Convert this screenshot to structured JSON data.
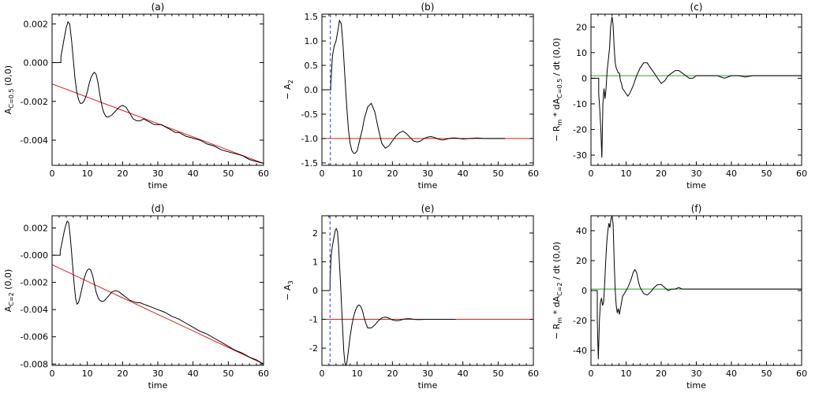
{
  "chart_data": [
    {
      "id": "a",
      "type": "line",
      "title": "(a)",
      "xlabel": "time",
      "ylabel": "A",
      "ylabel_sub": "C=0.5",
      "ylabel_tail": "(0,0)",
      "xlim": [
        0,
        60
      ],
      "ylim": [
        -0.0053,
        0.0025
      ],
      "xticks": [
        0,
        10,
        20,
        30,
        40,
        50,
        60
      ],
      "xtick_labels": [
        "0",
        "10",
        "20",
        "30",
        "40",
        "50",
        "60"
      ],
      "yticks": [
        0.002,
        0.0,
        -0.002,
        -0.004
      ],
      "ytick_labels": [
        "0.002",
        "0.000",
        "-0.002",
        "-0.004"
      ],
      "series": [
        {
          "color": "#000000",
          "x": [
            0,
            2.5,
            2.5,
            3,
            3.5,
            4,
            4.5,
            5,
            5.5,
            6,
            6.5,
            7,
            7.5,
            8,
            8.5,
            9,
            9.5,
            10,
            10.5,
            11,
            11.5,
            12,
            12.5,
            13,
            13.5,
            14,
            14.5,
            15,
            15.5,
            16,
            17,
            18,
            19,
            20,
            21,
            22,
            23,
            24,
            25,
            26,
            27,
            28,
            29,
            30,
            31,
            32,
            33,
            34,
            35,
            36,
            37,
            38,
            40,
            42,
            44,
            46,
            48,
            50,
            52,
            54,
            56,
            58,
            60
          ],
          "y": [
            0,
            0,
            0.0003,
            0.0008,
            0.0013,
            0.0018,
            0.0021,
            0.002,
            0.0012,
            0.0002,
            -0.0008,
            -0.0015,
            -0.0019,
            -0.0021,
            -0.0021,
            -0.002,
            -0.0018,
            -0.0015,
            -0.0011,
            -0.0008,
            -0.0006,
            -0.0005,
            -0.0006,
            -0.001,
            -0.0016,
            -0.0021,
            -0.0025,
            -0.0027,
            -0.0028,
            -0.0028,
            -0.0027,
            -0.0025,
            -0.0023,
            -0.0022,
            -0.0023,
            -0.0026,
            -0.0029,
            -0.003,
            -0.003,
            -0.0029,
            -0.003,
            -0.0031,
            -0.0032,
            -0.0032,
            -0.0032,
            -0.0033,
            -0.0034,
            -0.0035,
            -0.0036,
            -0.0036,
            -0.0037,
            -0.0038,
            -0.0039,
            -0.004,
            -0.0042,
            -0.0043,
            -0.0045,
            -0.0046,
            -0.0047,
            -0.0048,
            -0.005,
            -0.0051,
            -0.0052
          ]
        },
        {
          "color": "#e41a1c",
          "x": [
            0,
            60
          ],
          "y": [
            -0.0011,
            -0.0052
          ]
        }
      ],
      "vlines": []
    },
    {
      "id": "b",
      "type": "line",
      "title": "(b)",
      "xlabel": "time",
      "ylabel": "− A",
      "ylabel_sub": "2",
      "ylabel_tail": "",
      "xlim": [
        0,
        60
      ],
      "ylim": [
        -1.55,
        1.55
      ],
      "xticks": [
        0,
        10,
        20,
        30,
        40,
        50,
        60
      ],
      "xtick_labels": [
        "0",
        "10",
        "20",
        "30",
        "40",
        "50",
        "60"
      ],
      "yticks": [
        1.5,
        1.0,
        0.5,
        0.0,
        -0.5,
        -1.0,
        -1.5
      ],
      "ytick_labels": [
        "1.5",
        "1.0",
        "0.5",
        "0.0",
        "-0.5",
        "-1.0",
        "-1.5"
      ],
      "series": [
        {
          "color": "#000000",
          "x": [
            0,
            2.5,
            2.5,
            3,
            3.5,
            4,
            4.5,
            5,
            5.5,
            6,
            6.5,
            7,
            7.5,
            8,
            8.5,
            9,
            9.5,
            10,
            10.5,
            11,
            11.5,
            12,
            13,
            14,
            15,
            16,
            17,
            18,
            19,
            20,
            21,
            22,
            23,
            24,
            25,
            26,
            27,
            28,
            29,
            30,
            31,
            32,
            33,
            34,
            35,
            36,
            37,
            38,
            39,
            40,
            42,
            44,
            46,
            48,
            50,
            52
          ],
          "y": [
            0,
            0,
            0.1,
            0.7,
            0.9,
            1.0,
            1.2,
            1.42,
            1.35,
            0.9,
            0.3,
            -0.3,
            -0.8,
            -1.1,
            -1.25,
            -1.3,
            -1.3,
            -1.25,
            -1.1,
            -0.95,
            -0.8,
            -0.6,
            -0.35,
            -0.28,
            -0.45,
            -0.8,
            -1.1,
            -1.2,
            -1.15,
            -1.05,
            -0.95,
            -0.88,
            -0.85,
            -0.9,
            -0.98,
            -1.05,
            -1.07,
            -1.05,
            -1.0,
            -0.97,
            -0.96,
            -0.98,
            -1.01,
            -1.03,
            -1.02,
            -1.0,
            -0.99,
            -0.99,
            -1.0,
            -1.01,
            -1.0,
            -0.99,
            -1.0,
            -1.0,
            -1.0,
            -1.0
          ]
        },
        {
          "color": "#e41a1c",
          "x": [
            0,
            60
          ],
          "y": [
            -1.0,
            -1.0
          ]
        }
      ],
      "vlines": [
        {
          "x": 2.4,
          "color": "#1f3fd6",
          "style": "dashed"
        }
      ]
    },
    {
      "id": "c",
      "type": "line",
      "title": "(c)",
      "xlabel": "time",
      "ylabel": "− R",
      "ylabel_sub": "m",
      "ylabel_tail": "* dA",
      "ylabel_sub2": "C=0.5",
      "ylabel_tail2": "/ dt (0,0)",
      "xlim": [
        0,
        60
      ],
      "ylim": [
        -34,
        25
      ],
      "xticks": [
        0,
        10,
        20,
        30,
        40,
        50,
        60
      ],
      "xtick_labels": [
        "0",
        "10",
        "20",
        "30",
        "40",
        "50",
        "60"
      ],
      "yticks": [
        20,
        10,
        0,
        -10,
        -20,
        -30
      ],
      "ytick_labels": [
        "20",
        "10",
        "0",
        "-10",
        "-20",
        "-30"
      ],
      "series": [
        {
          "color": "#000000",
          "x": [
            0,
            2.2,
            2.2,
            2.5,
            2.8,
            3.1,
            3.4,
            3.7,
            4,
            4.3,
            4.6,
            5,
            5.3,
            5.6,
            6,
            6.3,
            6.6,
            6.9,
            7.2,
            7.5,
            7.8,
            8.1,
            8.4,
            8.7,
            9,
            9.5,
            10,
            10.5,
            11,
            12,
            13,
            14,
            15,
            16,
            17,
            18,
            19,
            20,
            21,
            22,
            23,
            24,
            25,
            26,
            27,
            28,
            29,
            30,
            31,
            32,
            34,
            36,
            38,
            40,
            42,
            44,
            46,
            48,
            50,
            52,
            54,
            56,
            58,
            60
          ],
          "y": [
            0,
            0,
            -6,
            -12,
            -20,
            -31,
            -10,
            -4,
            -8,
            -4,
            3,
            8,
            12,
            20,
            24,
            21,
            12,
            6,
            4,
            3,
            2,
            2,
            -1,
            -2,
            -4,
            -5,
            -6,
            -7,
            -6,
            -3,
            1,
            4,
            6,
            6,
            4,
            2,
            0,
            -2,
            -1,
            1,
            2,
            3,
            3,
            2,
            1,
            0,
            0,
            1,
            1,
            1,
            1,
            1,
            0,
            1,
            1,
            0.5,
            1,
            1,
            1,
            1,
            1,
            1,
            1,
            1
          ]
        },
        {
          "color": "#2ca02c",
          "x": [
            0,
            60
          ],
          "y": [
            1.0,
            1.0
          ]
        }
      ],
      "vlines": []
    },
    {
      "id": "d",
      "type": "line",
      "title": "(d)",
      "xlabel": "time",
      "ylabel": "A",
      "ylabel_sub": "C=2",
      "ylabel_tail": "(0,0)",
      "xlim": [
        0,
        60
      ],
      "ylim": [
        -0.0081,
        0.0029
      ],
      "xticks": [
        0,
        10,
        20,
        30,
        40,
        50,
        60
      ],
      "xtick_labels": [
        "0",
        "10",
        "20",
        "30",
        "40",
        "50",
        "60"
      ],
      "yticks": [
        0.002,
        0.0,
        -0.002,
        -0.004,
        -0.006,
        -0.008
      ],
      "ytick_labels": [
        "0.002",
        "-0.000",
        "-0.002",
        "-0.004",
        "-0.006",
        "-0.008"
      ],
      "series": [
        {
          "color": "#000000",
          "x": [
            0,
            2.3,
            2.3,
            2.7,
            3.1,
            3.5,
            3.9,
            4.3,
            4.7,
            5.1,
            5.5,
            5.9,
            6.3,
            6.7,
            7.1,
            7.5,
            8,
            8.5,
            9,
            9.5,
            10,
            10.5,
            11,
            11.5,
            12,
            12.5,
            13,
            13.5,
            14,
            14.5,
            15,
            16,
            17,
            18,
            19,
            20,
            21,
            22,
            23,
            24,
            25,
            26,
            27,
            28,
            30,
            32,
            34,
            36,
            38,
            40,
            42,
            44,
            46,
            48,
            50,
            52,
            54,
            56,
            58,
            60
          ],
          "y": [
            0,
            0,
            0.0003,
            0.0008,
            0.0013,
            0.0018,
            0.0022,
            0.0025,
            0.0024,
            0.0015,
            0.0003,
            -0.001,
            -0.0022,
            -0.0032,
            -0.0036,
            -0.0035,
            -0.003,
            -0.0024,
            -0.0018,
            -0.0014,
            -0.0011,
            -0.001,
            -0.0011,
            -0.0015,
            -0.0021,
            -0.0027,
            -0.0031,
            -0.0033,
            -0.0034,
            -0.0034,
            -0.0033,
            -0.003,
            -0.0027,
            -0.0026,
            -0.0027,
            -0.0029,
            -0.0031,
            -0.0033,
            -0.0034,
            -0.0035,
            -0.0035,
            -0.0036,
            -0.0037,
            -0.0038,
            -0.004,
            -0.0042,
            -0.0045,
            -0.0047,
            -0.005,
            -0.0053,
            -0.0056,
            -0.0058,
            -0.0061,
            -0.0064,
            -0.0067,
            -0.007,
            -0.0072,
            -0.0075,
            -0.0077,
            -0.008
          ]
        },
        {
          "color": "#e41a1c",
          "x": [
            0,
            60
          ],
          "y": [
            -0.0007,
            -0.008
          ]
        }
      ],
      "vlines": []
    },
    {
      "id": "e",
      "type": "line",
      "title": "(e)",
      "xlabel": "time",
      "ylabel": "− A",
      "ylabel_sub": "3",
      "ylabel_tail": "",
      "xlim": [
        0,
        60
      ],
      "ylim": [
        -2.6,
        2.6
      ],
      "xticks": [
        0,
        10,
        20,
        30,
        40,
        50,
        60
      ],
      "xtick_labels": [
        "0",
        "10",
        "20",
        "30",
        "40",
        "50",
        "60"
      ],
      "yticks": [
        2,
        1,
        0,
        -1,
        -2
      ],
      "ytick_labels": [
        "2",
        "1",
        "0",
        "-1",
        "-2"
      ],
      "series": [
        {
          "color": "#000000",
          "x": [
            0,
            2.3,
            2.3,
            2.6,
            2.9,
            3.2,
            3.5,
            3.8,
            4.1,
            4.4,
            4.7,
            5,
            5.3,
            5.6,
            5.9,
            6.2,
            6.5,
            6.8,
            7.1,
            7.4,
            7.7,
            8,
            8.5,
            9,
            9.5,
            10,
            10.5,
            11,
            11.5,
            12,
            12.5,
            13,
            14,
            15,
            16,
            17,
            18,
            19,
            20,
            21,
            22,
            23,
            24,
            25,
            26,
            27,
            28,
            29,
            30,
            32,
            34,
            36,
            38
          ],
          "y": [
            0,
            0,
            0.3,
            1.2,
            1.5,
            1.7,
            1.9,
            2.1,
            2.15,
            2.05,
            1.6,
            0.9,
            0.2,
            -0.6,
            -1.4,
            -2.1,
            -2.5,
            -2.6,
            -2.5,
            -2.2,
            -1.9,
            -1.6,
            -1.2,
            -0.9,
            -0.7,
            -0.55,
            -0.5,
            -0.55,
            -0.7,
            -0.95,
            -1.15,
            -1.3,
            -1.3,
            -1.2,
            -1.05,
            -0.95,
            -0.92,
            -0.96,
            -1.02,
            -1.05,
            -1.04,
            -1.0,
            -0.98,
            -0.98,
            -1.0,
            -1.01,
            -1.01,
            -1.0,
            -1.0,
            -1.0,
            -1.0,
            -1.0,
            -1.0
          ]
        },
        {
          "color": "#e41a1c",
          "x": [
            0,
            60
          ],
          "y": [
            -1.0,
            -1.0
          ]
        }
      ],
      "vlines": [
        {
          "x": 2.3,
          "color": "#1f3fd6",
          "style": "dashed"
        }
      ]
    },
    {
      "id": "f",
      "type": "line",
      "title": "(f)",
      "xlabel": "time",
      "ylabel": "− R",
      "ylabel_sub": "m",
      "ylabel_tail": "* dA",
      "ylabel_sub2": "C=2",
      "ylabel_tail2": "/ dt (0,0)",
      "xlim": [
        0,
        60
      ],
      "ylim": [
        -50,
        50
      ],
      "xticks": [
        0,
        10,
        20,
        30,
        40,
        50,
        60
      ],
      "xtick_labels": [
        "0",
        "10",
        "20",
        "30",
        "40",
        "50",
        "60"
      ],
      "yticks": [
        40,
        20,
        0,
        -20,
        -40
      ],
      "ytick_labels": [
        "40",
        "20",
        "0",
        "-20",
        "-40"
      ],
      "series": [
        {
          "color": "#000000",
          "x": [
            0,
            1.8,
            1.8,
            2.1,
            2.4,
            2.7,
            3,
            3.3,
            3.6,
            3.9,
            4.2,
            4.5,
            4.8,
            5.1,
            5.4,
            5.7,
            6,
            6.3,
            6.6,
            6.9,
            7.2,
            7.5,
            7.8,
            8.1,
            8.4,
            8.7,
            9,
            9.5,
            10,
            10.5,
            11,
            11.5,
            12,
            12.5,
            13,
            13.5,
            14,
            15,
            16,
            17,
            18,
            19,
            20,
            21,
            22,
            23,
            24,
            25,
            26,
            27,
            28,
            30,
            32,
            34,
            36,
            38,
            40,
            44,
            48,
            52,
            56,
            60
          ],
          "y": [
            0,
            0,
            -20,
            -46,
            -20,
            -8,
            -5,
            -10,
            -8,
            5,
            20,
            32,
            40,
            45,
            42,
            48,
            50,
            45,
            20,
            0,
            -10,
            -15,
            -12,
            -16,
            -12,
            -8,
            -4,
            -2,
            0,
            2,
            5,
            8,
            12,
            14,
            12,
            6,
            2,
            -2,
            -3,
            -1,
            2,
            4,
            4,
            2,
            0,
            1,
            1,
            2,
            1,
            1,
            1,
            1,
            1,
            1,
            1,
            1,
            1,
            1,
            1,
            1,
            1,
            1
          ]
        },
        {
          "color": "#2ca02c",
          "x": [
            0,
            60
          ],
          "y": [
            1.0,
            1.0
          ]
        }
      ],
      "vlines": []
    }
  ]
}
